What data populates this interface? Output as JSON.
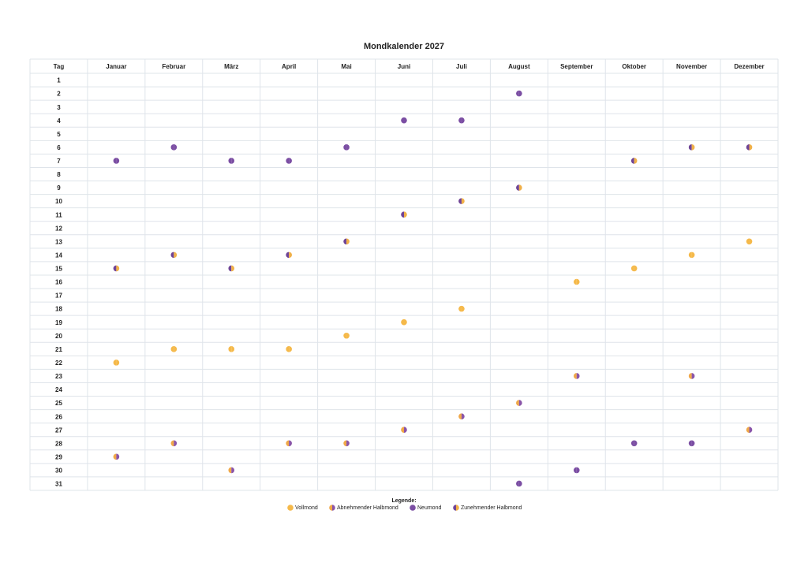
{
  "title": "Mondkalender 2027",
  "table": {
    "header": [
      "Tag",
      "Januar",
      "Februar",
      "März",
      "April",
      "Mai",
      "Juni",
      "Juli",
      "August",
      "September",
      "Oktober",
      "November",
      "Dezember"
    ],
    "rows": [
      {
        "day": "1",
        "cells": [
          null,
          null,
          null,
          null,
          null,
          null,
          null,
          null,
          null,
          null,
          null,
          null
        ]
      },
      {
        "day": "2",
        "cells": [
          null,
          null,
          null,
          null,
          null,
          null,
          null,
          2,
          null,
          null,
          null,
          null
        ]
      },
      {
        "day": "3",
        "cells": [
          null,
          null,
          null,
          null,
          null,
          null,
          null,
          null,
          null,
          null,
          null,
          null
        ]
      },
      {
        "day": "4",
        "cells": [
          null,
          null,
          null,
          null,
          null,
          2,
          2,
          null,
          null,
          null,
          null,
          null
        ]
      },
      {
        "day": "5",
        "cells": [
          null,
          null,
          null,
          null,
          null,
          null,
          null,
          null,
          null,
          null,
          null,
          null
        ]
      },
      {
        "day": "6",
        "cells": [
          null,
          2,
          null,
          null,
          2,
          null,
          null,
          null,
          null,
          null,
          3,
          3
        ]
      },
      {
        "day": "7",
        "cells": [
          2,
          null,
          2,
          2,
          null,
          null,
          null,
          null,
          null,
          3,
          null,
          null
        ]
      },
      {
        "day": "8",
        "cells": [
          null,
          null,
          null,
          null,
          null,
          null,
          null,
          null,
          null,
          null,
          null,
          null
        ]
      },
      {
        "day": "9",
        "cells": [
          null,
          null,
          null,
          null,
          null,
          null,
          null,
          3,
          null,
          null,
          null,
          null
        ]
      },
      {
        "day": "10",
        "cells": [
          null,
          null,
          null,
          null,
          null,
          null,
          3,
          null,
          null,
          null,
          null,
          null
        ]
      },
      {
        "day": "11",
        "cells": [
          null,
          null,
          null,
          null,
          null,
          3,
          null,
          null,
          null,
          null,
          null,
          null
        ]
      },
      {
        "day": "12",
        "cells": [
          null,
          null,
          null,
          null,
          null,
          null,
          null,
          null,
          null,
          null,
          null,
          null
        ]
      },
      {
        "day": "13",
        "cells": [
          null,
          null,
          null,
          null,
          3,
          null,
          null,
          null,
          null,
          null,
          null,
          0
        ]
      },
      {
        "day": "14",
        "cells": [
          null,
          3,
          null,
          3,
          null,
          null,
          null,
          null,
          null,
          null,
          0,
          null
        ]
      },
      {
        "day": "15",
        "cells": [
          3,
          null,
          3,
          null,
          null,
          null,
          null,
          null,
          null,
          0,
          null,
          null
        ]
      },
      {
        "day": "16",
        "cells": [
          null,
          null,
          null,
          null,
          null,
          null,
          null,
          null,
          0,
          null,
          null,
          null
        ]
      },
      {
        "day": "17",
        "cells": [
          null,
          null,
          null,
          null,
          null,
          null,
          null,
          null,
          null,
          null,
          null,
          null
        ]
      },
      {
        "day": "18",
        "cells": [
          null,
          null,
          null,
          null,
          null,
          null,
          0,
          null,
          null,
          null,
          null,
          null
        ]
      },
      {
        "day": "19",
        "cells": [
          null,
          null,
          null,
          null,
          null,
          0,
          null,
          null,
          null,
          null,
          null,
          null
        ]
      },
      {
        "day": "20",
        "cells": [
          null,
          null,
          null,
          null,
          0,
          null,
          null,
          null,
          null,
          null,
          null,
          null
        ]
      },
      {
        "day": "21",
        "cells": [
          null,
          0,
          0,
          0,
          null,
          null,
          null,
          null,
          null,
          null,
          null,
          null
        ]
      },
      {
        "day": "22",
        "cells": [
          0,
          null,
          null,
          null,
          null,
          null,
          null,
          null,
          null,
          null,
          null,
          null
        ]
      },
      {
        "day": "23",
        "cells": [
          null,
          null,
          null,
          null,
          null,
          null,
          null,
          null,
          1,
          null,
          1,
          null
        ]
      },
      {
        "day": "24",
        "cells": [
          null,
          null,
          null,
          null,
          null,
          null,
          null,
          null,
          null,
          null,
          null,
          null
        ]
      },
      {
        "day": "25",
        "cells": [
          null,
          null,
          null,
          null,
          null,
          null,
          null,
          1,
          null,
          null,
          null,
          null
        ]
      },
      {
        "day": "26",
        "cells": [
          null,
          null,
          null,
          null,
          null,
          null,
          1,
          null,
          null,
          null,
          null,
          null
        ]
      },
      {
        "day": "27",
        "cells": [
          null,
          null,
          null,
          null,
          null,
          1,
          null,
          null,
          null,
          null,
          null,
          1
        ]
      },
      {
        "day": "28",
        "cells": [
          null,
          1,
          null,
          1,
          1,
          null,
          null,
          null,
          null,
          2,
          2,
          null
        ]
      },
      {
        "day": "29",
        "cells": [
          1,
          null,
          null,
          null,
          null,
          null,
          null,
          null,
          null,
          null,
          null,
          null
        ]
      },
      {
        "day": "30",
        "cells": [
          null,
          null,
          1,
          null,
          null,
          null,
          null,
          null,
          2,
          null,
          null,
          null
        ]
      },
      {
        "day": "31",
        "cells": [
          null,
          null,
          null,
          null,
          null,
          null,
          null,
          2,
          null,
          null,
          null,
          null
        ]
      }
    ]
  },
  "legend": {
    "title": "Legende:",
    "items": [
      {
        "label": "Vollmond",
        "colors": [
          "#f5b94a",
          "#f5b94a"
        ]
      },
      {
        "label": "Abnehmender Halbmond",
        "colors": [
          "#f0a848",
          "#8a55a8"
        ]
      },
      {
        "label": "Neumond",
        "colors": [
          "#7b4ea3",
          "#7b4ea3"
        ]
      },
      {
        "label": "Zunehmender Halbmond",
        "colors": [
          "#6f4496",
          "#f0b048"
        ]
      }
    ]
  }
}
